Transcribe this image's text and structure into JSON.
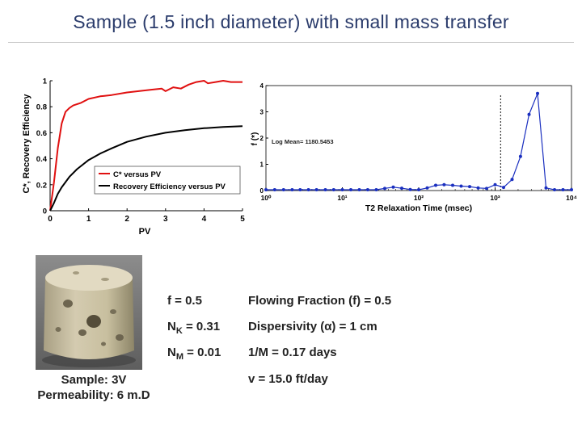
{
  "title": "Sample (1.5 inch diameter) with small mass transfer",
  "chart_data": [
    {
      "type": "line",
      "xlabel": "PV",
      "ylabel": "C*, Recovery Efficiency",
      "xlim": [
        0,
        5
      ],
      "ylim": [
        0,
        1
      ],
      "x_ticks": [
        0,
        1,
        2,
        3,
        4,
        5
      ],
      "y_ticks": [
        0,
        0.2,
        0.4,
        0.6,
        0.8,
        1
      ],
      "y_tick_labels": [
        "0",
        "0.2",
        "0.4",
        "0.6",
        "0.8",
        "1"
      ],
      "grid": false,
      "legend_position": "bottom-right",
      "legend": [
        "C* versus PV",
        "Recovery Efficiency versus PV"
      ],
      "colors": [
        "#e01010",
        "#000000"
      ],
      "series": [
        {
          "name": "C* versus PV",
          "x": [
            0,
            0.1,
            0.2,
            0.3,
            0.4,
            0.5,
            0.6,
            0.8,
            1.0,
            1.3,
            1.6,
            2.0,
            2.3,
            2.6,
            2.9,
            3.0,
            3.2,
            3.4,
            3.6,
            3.8,
            4.0,
            4.1,
            4.3,
            4.5,
            4.7,
            5.0
          ],
          "y": [
            0,
            0.22,
            0.48,
            0.67,
            0.76,
            0.79,
            0.81,
            0.83,
            0.86,
            0.88,
            0.89,
            0.91,
            0.92,
            0.93,
            0.94,
            0.92,
            0.95,
            0.94,
            0.97,
            0.99,
            1.0,
            0.98,
            0.99,
            1.0,
            0.99,
            0.99
          ]
        },
        {
          "name": "Recovery Efficiency versus PV",
          "x": [
            0,
            0.1,
            0.2,
            0.3,
            0.5,
            0.7,
            1.0,
            1.3,
            1.6,
            2.0,
            2.5,
            3.0,
            3.5,
            4.0,
            4.5,
            5.0
          ],
          "y": [
            0,
            0.06,
            0.13,
            0.18,
            0.26,
            0.32,
            0.39,
            0.44,
            0.48,
            0.53,
            0.57,
            0.6,
            0.62,
            0.635,
            0.645,
            0.65
          ]
        }
      ]
    },
    {
      "type": "line",
      "xlabel": "T2 Relaxation Time (msec)",
      "ylabel": "f (*)",
      "x_scale": "log",
      "xlim": [
        1,
        10000
      ],
      "ylim": [
        0,
        4
      ],
      "x_ticks": [
        1,
        10,
        100,
        1000,
        10000
      ],
      "x_tick_labels": [
        "10⁰",
        "10¹",
        "10²",
        "10³",
        "10⁴"
      ],
      "y_ticks": [
        0,
        1,
        2,
        3,
        4
      ],
      "annotation": "Log Mean= 1180.5453",
      "marker_line_x": 1180.5453,
      "grid": false,
      "colors": [
        "#1a2fbf"
      ],
      "series": [
        {
          "x": [
            1.0,
            1.3,
            1.7,
            2.2,
            2.8,
            3.6,
            4.6,
            6.0,
            7.7,
            10,
            12.9,
            16.7,
            21.5,
            27.8,
            35.9,
            46.4,
            59.9,
            77.4,
            100,
            129,
            167,
            215,
            278,
            359,
            464,
            599,
            774,
            1000,
            1290,
            1670,
            2150,
            2780,
            3590,
            4640,
            5990,
            7740,
            10000
          ],
          "y": [
            0.03,
            0.03,
            0.03,
            0.03,
            0.03,
            0.03,
            0.03,
            0.03,
            0.03,
            0.03,
            0.03,
            0.03,
            0.03,
            0.03,
            0.08,
            0.13,
            0.09,
            0.04,
            0.03,
            0.1,
            0.2,
            0.22,
            0.2,
            0.17,
            0.15,
            0.1,
            0.08,
            0.22,
            0.12,
            0.42,
            1.3,
            2.9,
            3.7,
            0.1,
            0.03,
            0.03,
            0.03
          ]
        }
      ]
    }
  ],
  "sample": {
    "line1": "Sample: 3V",
    "line2": "Permeability: 6 m.D"
  },
  "params": [
    {
      "pre": "f = 0.5",
      "sub": "",
      "post": ""
    },
    {
      "pre": "N",
      "sub": "K",
      "post": " = 0.31"
    },
    {
      "pre": "N",
      "sub": "M",
      "post": " = 0.01"
    }
  ],
  "results": [
    "Flowing Fraction (f) = 0.5",
    "Dispersivity (α) = 1 cm",
    "1/M = 0.17 days",
    "v  = 15.0 ft/day"
  ]
}
